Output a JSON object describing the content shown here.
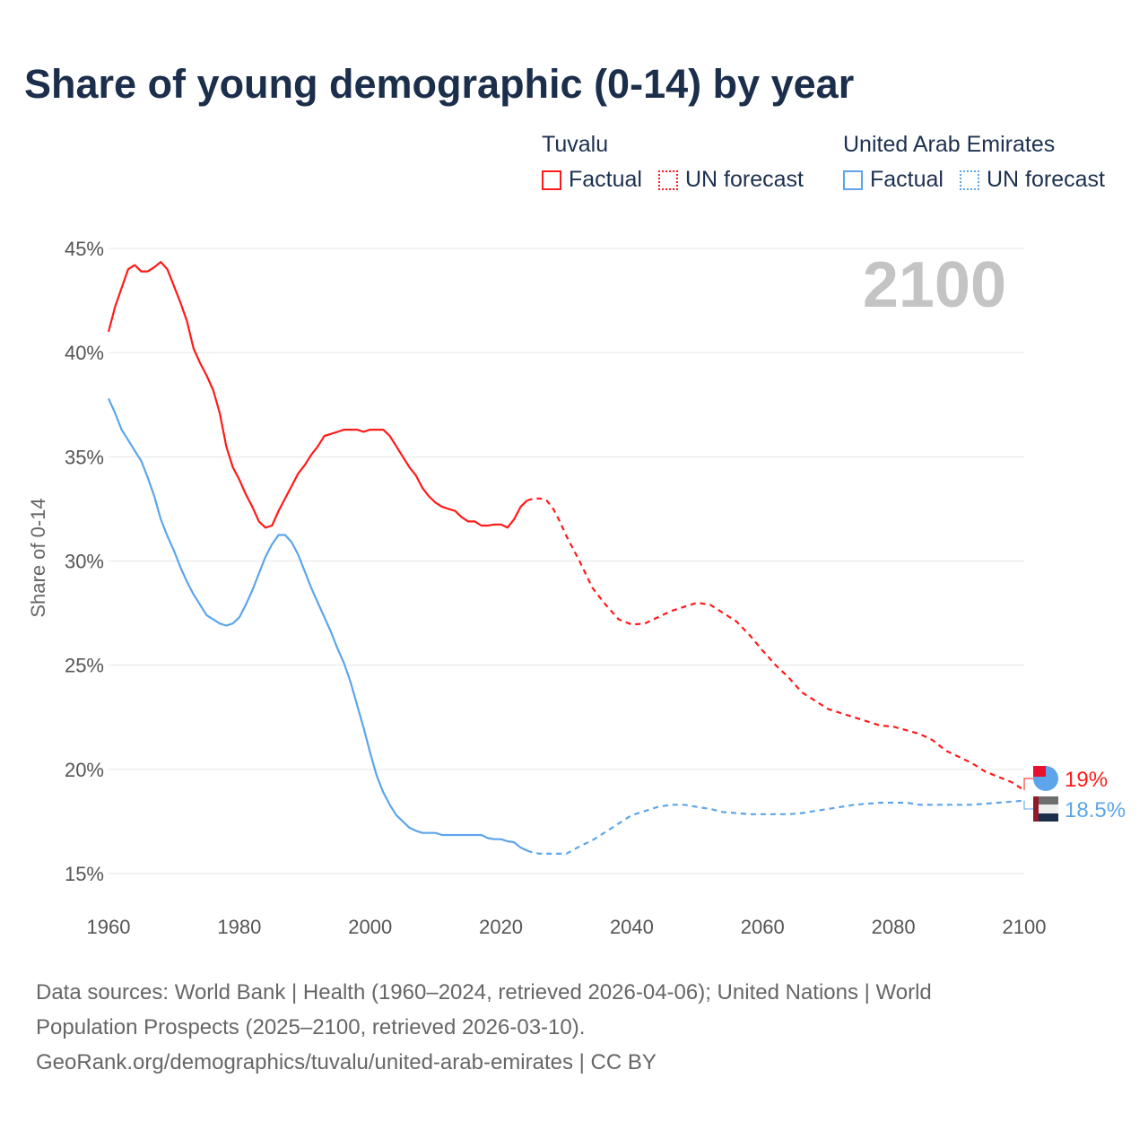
{
  "title": "Share of young demographic (0-14) by year",
  "legend": {
    "groups": [
      {
        "name": "Tuvalu",
        "color": "#ff1a1a",
        "items": [
          "Factual",
          "UN forecast"
        ]
      },
      {
        "name": "United Arab Emirates",
        "color": "#5ca5ea",
        "items": [
          "Factual",
          "UN forecast"
        ]
      }
    ]
  },
  "year_watermark": "2100",
  "footer": {
    "line1": "Data sources: World Bank | Health (1960–2024, retrieved 2026-04-06); United Nations | World",
    "line2": "Population Prospects (2025–2100, retrieved 2026-03-10).",
    "line3": "GeoRank.org/demographics/tuvalu/united-arab-emirates | CC BY"
  },
  "chart_data": {
    "type": "line",
    "title": "Share of young demographic (0-14) by year",
    "xlabel": "",
    "ylabel": "Share of 0-14",
    "xlim": [
      1960,
      2100
    ],
    "ylim": [
      15,
      45
    ],
    "xticks": [
      "1960",
      "1980",
      "2000",
      "2020",
      "2040",
      "2060",
      "2080",
      "2100"
    ],
    "yticks": [
      "15%",
      "20%",
      "25%",
      "30%",
      "35%",
      "40%",
      "45%"
    ],
    "series": [
      {
        "name": "Tuvalu",
        "color": "#ff1a1a",
        "end_label": "19%",
        "factual": [
          [
            1960,
            41.0
          ],
          [
            1961,
            42.2
          ],
          [
            1962,
            43.1
          ],
          [
            1963,
            44.0
          ],
          [
            1964,
            44.2
          ],
          [
            1965,
            43.9
          ],
          [
            1966,
            43.9
          ],
          [
            1967,
            44.1
          ],
          [
            1968,
            44.35
          ],
          [
            1969,
            44.0
          ],
          [
            1970,
            43.2
          ],
          [
            1971,
            42.4
          ],
          [
            1972,
            41.5
          ],
          [
            1973,
            40.2
          ],
          [
            1974,
            39.5
          ],
          [
            1975,
            38.9
          ],
          [
            1976,
            38.2
          ],
          [
            1977,
            37.1
          ],
          [
            1978,
            35.5
          ],
          [
            1979,
            34.5
          ],
          [
            1980,
            33.9
          ],
          [
            1981,
            33.2
          ],
          [
            1982,
            32.6
          ],
          [
            1983,
            31.9
          ],
          [
            1984,
            31.6
          ],
          [
            1985,
            31.7
          ],
          [
            1986,
            32.4
          ],
          [
            1987,
            33.0
          ],
          [
            1988,
            33.6
          ],
          [
            1989,
            34.2
          ],
          [
            1990,
            34.6
          ],
          [
            1991,
            35.1
          ],
          [
            1992,
            35.5
          ],
          [
            1993,
            36.0
          ],
          [
            1994,
            36.1
          ],
          [
            1995,
            36.2
          ],
          [
            1996,
            36.3
          ],
          [
            1997,
            36.3
          ],
          [
            1998,
            36.3
          ],
          [
            1999,
            36.2
          ],
          [
            2000,
            36.3
          ],
          [
            2001,
            36.3
          ],
          [
            2002,
            36.3
          ],
          [
            2003,
            36.0
          ],
          [
            2004,
            35.5
          ],
          [
            2005,
            35.0
          ],
          [
            2006,
            34.5
          ],
          [
            2007,
            34.1
          ],
          [
            2008,
            33.5
          ],
          [
            2009,
            33.1
          ],
          [
            2010,
            32.8
          ],
          [
            2011,
            32.6
          ],
          [
            2012,
            32.5
          ],
          [
            2013,
            32.4
          ],
          [
            2014,
            32.1
          ],
          [
            2015,
            31.9
          ],
          [
            2016,
            31.9
          ],
          [
            2017,
            31.7
          ],
          [
            2018,
            31.7
          ],
          [
            2019,
            31.75
          ],
          [
            2020,
            31.75
          ],
          [
            2021,
            31.6
          ],
          [
            2022,
            32.0
          ],
          [
            2023,
            32.6
          ],
          [
            2024,
            32.9
          ]
        ],
        "forecast": [
          [
            2024,
            32.9
          ],
          [
            2025,
            33.0
          ],
          [
            2026,
            33.0
          ],
          [
            2027,
            32.9
          ],
          [
            2028,
            32.5
          ],
          [
            2029,
            31.9
          ],
          [
            2030,
            31.2
          ],
          [
            2032,
            30.0
          ],
          [
            2034,
            28.7
          ],
          [
            2036,
            27.9
          ],
          [
            2038,
            27.2
          ],
          [
            2040,
            26.95
          ],
          [
            2042,
            27.0
          ],
          [
            2044,
            27.3
          ],
          [
            2046,
            27.6
          ],
          [
            2048,
            27.8
          ],
          [
            2050,
            28.0
          ],
          [
            2052,
            27.9
          ],
          [
            2054,
            27.5
          ],
          [
            2056,
            27.1
          ],
          [
            2058,
            26.45
          ],
          [
            2060,
            25.7
          ],
          [
            2062,
            25.0
          ],
          [
            2064,
            24.4
          ],
          [
            2066,
            23.7
          ],
          [
            2068,
            23.3
          ],
          [
            2070,
            22.9
          ],
          [
            2074,
            22.5
          ],
          [
            2078,
            22.1
          ],
          [
            2080,
            22.05
          ],
          [
            2084,
            21.7
          ],
          [
            2086,
            21.4
          ],
          [
            2088,
            20.9
          ],
          [
            2092,
            20.3
          ],
          [
            2094,
            19.9
          ],
          [
            2098,
            19.4
          ],
          [
            2100,
            19.0
          ]
        ]
      },
      {
        "name": "United Arab Emirates",
        "color": "#5ca5ea",
        "end_label": "18.5%",
        "factual": [
          [
            1960,
            37.8
          ],
          [
            1961,
            37.1
          ],
          [
            1962,
            36.3
          ],
          [
            1963,
            35.8
          ],
          [
            1964,
            35.3
          ],
          [
            1965,
            34.8
          ],
          [
            1966,
            34.0
          ],
          [
            1967,
            33.1
          ],
          [
            1968,
            32.0
          ],
          [
            1969,
            31.2
          ],
          [
            1970,
            30.5
          ],
          [
            1971,
            29.7
          ],
          [
            1972,
            29.0
          ],
          [
            1973,
            28.4
          ],
          [
            1974,
            27.9
          ],
          [
            1975,
            27.4
          ],
          [
            1976,
            27.2
          ],
          [
            1977,
            27.0
          ],
          [
            1978,
            26.9
          ],
          [
            1979,
            27.0
          ],
          [
            1980,
            27.3
          ],
          [
            1981,
            27.9
          ],
          [
            1982,
            28.6
          ],
          [
            1983,
            29.4
          ],
          [
            1984,
            30.2
          ],
          [
            1985,
            30.8
          ],
          [
            1986,
            31.25
          ],
          [
            1987,
            31.25
          ],
          [
            1988,
            30.9
          ],
          [
            1989,
            30.3
          ],
          [
            1990,
            29.5
          ],
          [
            1991,
            28.7
          ],
          [
            1992,
            28.0
          ],
          [
            1993,
            27.3
          ],
          [
            1994,
            26.6
          ],
          [
            1995,
            25.8
          ],
          [
            1996,
            25.1
          ],
          [
            1997,
            24.2
          ],
          [
            1998,
            23.1
          ],
          [
            1999,
            22.0
          ],
          [
            2000,
            20.8
          ],
          [
            2001,
            19.7
          ],
          [
            2002,
            18.9
          ],
          [
            2003,
            18.3
          ],
          [
            2004,
            17.8
          ],
          [
            2005,
            17.5
          ],
          [
            2006,
            17.2
          ],
          [
            2007,
            17.05
          ],
          [
            2008,
            16.95
          ],
          [
            2009,
            16.95
          ],
          [
            2010,
            16.95
          ],
          [
            2011,
            16.85
          ],
          [
            2012,
            16.85
          ],
          [
            2013,
            16.85
          ],
          [
            2014,
            16.85
          ],
          [
            2015,
            16.85
          ],
          [
            2016,
            16.85
          ],
          [
            2017,
            16.85
          ],
          [
            2018,
            16.7
          ],
          [
            2019,
            16.65
          ],
          [
            2020,
            16.65
          ],
          [
            2021,
            16.55
          ],
          [
            2022,
            16.5
          ],
          [
            2023,
            16.25
          ],
          [
            2024,
            16.1
          ]
        ],
        "forecast": [
          [
            2024,
            16.1
          ],
          [
            2025,
            16.0
          ],
          [
            2026,
            15.95
          ],
          [
            2030,
            15.95
          ],
          [
            2032,
            16.3
          ],
          [
            2034,
            16.6
          ],
          [
            2036,
            17.0
          ],
          [
            2038,
            17.4
          ],
          [
            2040,
            17.8
          ],
          [
            2042,
            18.0
          ],
          [
            2044,
            18.2
          ],
          [
            2046,
            18.3
          ],
          [
            2048,
            18.3
          ],
          [
            2050,
            18.2
          ],
          [
            2052,
            18.1
          ],
          [
            2054,
            17.95
          ],
          [
            2056,
            17.9
          ],
          [
            2058,
            17.85
          ],
          [
            2064,
            17.85
          ],
          [
            2066,
            17.9
          ],
          [
            2068,
            18.0
          ],
          [
            2070,
            18.1
          ],
          [
            2074,
            18.3
          ],
          [
            2078,
            18.4
          ],
          [
            2082,
            18.4
          ],
          [
            2084,
            18.3
          ],
          [
            2092,
            18.3
          ],
          [
            2096,
            18.4
          ],
          [
            2100,
            18.5
          ]
        ]
      }
    ]
  }
}
